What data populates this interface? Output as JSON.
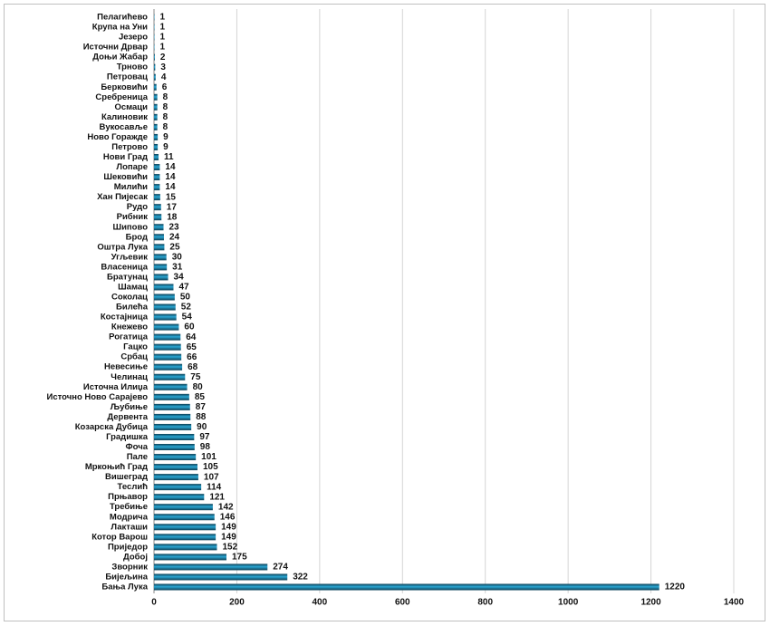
{
  "chart_data": {
    "type": "bar",
    "orientation": "horizontal",
    "categories": [
      "Пелагићево",
      "Крупа на Уни",
      "Језеро",
      "Источни Дрвар",
      "Доњи Жабар",
      "Трново",
      "Петровац",
      "Берковићи",
      "Сребреница",
      "Осмаци",
      "Калиновик",
      "Вукосавље",
      "Ново Горажде",
      "Петрово",
      "Нови Град",
      "Лопаре",
      "Шековићи",
      "Милићи",
      "Хан Пијесак",
      "Рудо",
      "Рибник",
      "Шипово",
      "Брод",
      "Оштра Лука",
      "Угљевик",
      "Власеница",
      "Братунац",
      "Шамац",
      "Соколац",
      "Билећа",
      "Костајница",
      "Кнежево",
      "Рогатица",
      "Гацко",
      "Србац",
      "Невесиње",
      "Челинац",
      "Источна Илиџа",
      "Источно Ново Сарајево",
      "Љубиње",
      "Дервента",
      "Козарска Дубица",
      "Градишка",
      "Фоча",
      "Пале",
      "Мркоњић Град",
      "Вишеград",
      "Теслић",
      "Прњавор",
      "Требиње",
      "Модрича",
      "Лакташи",
      "Котор Варош",
      "Приједор",
      "Добој",
      "Зворник",
      "Бијељина",
      "Бања Лука"
    ],
    "values": [
      1,
      1,
      1,
      1,
      2,
      3,
      4,
      6,
      8,
      8,
      8,
      8,
      9,
      9,
      11,
      14,
      14,
      14,
      15,
      17,
      18,
      23,
      24,
      25,
      30,
      31,
      34,
      47,
      50,
      52,
      54,
      60,
      64,
      65,
      66,
      68,
      75,
      80,
      85,
      87,
      88,
      90,
      97,
      98,
      101,
      105,
      107,
      114,
      121,
      142,
      146,
      149,
      149,
      152,
      175,
      274,
      322,
      1220
    ],
    "color": "#2aa7d4",
    "xlim": [
      0,
      1400
    ],
    "xticks": [
      0,
      200,
      400,
      600,
      800,
      1000,
      1200,
      1400
    ],
    "grid": true
  }
}
